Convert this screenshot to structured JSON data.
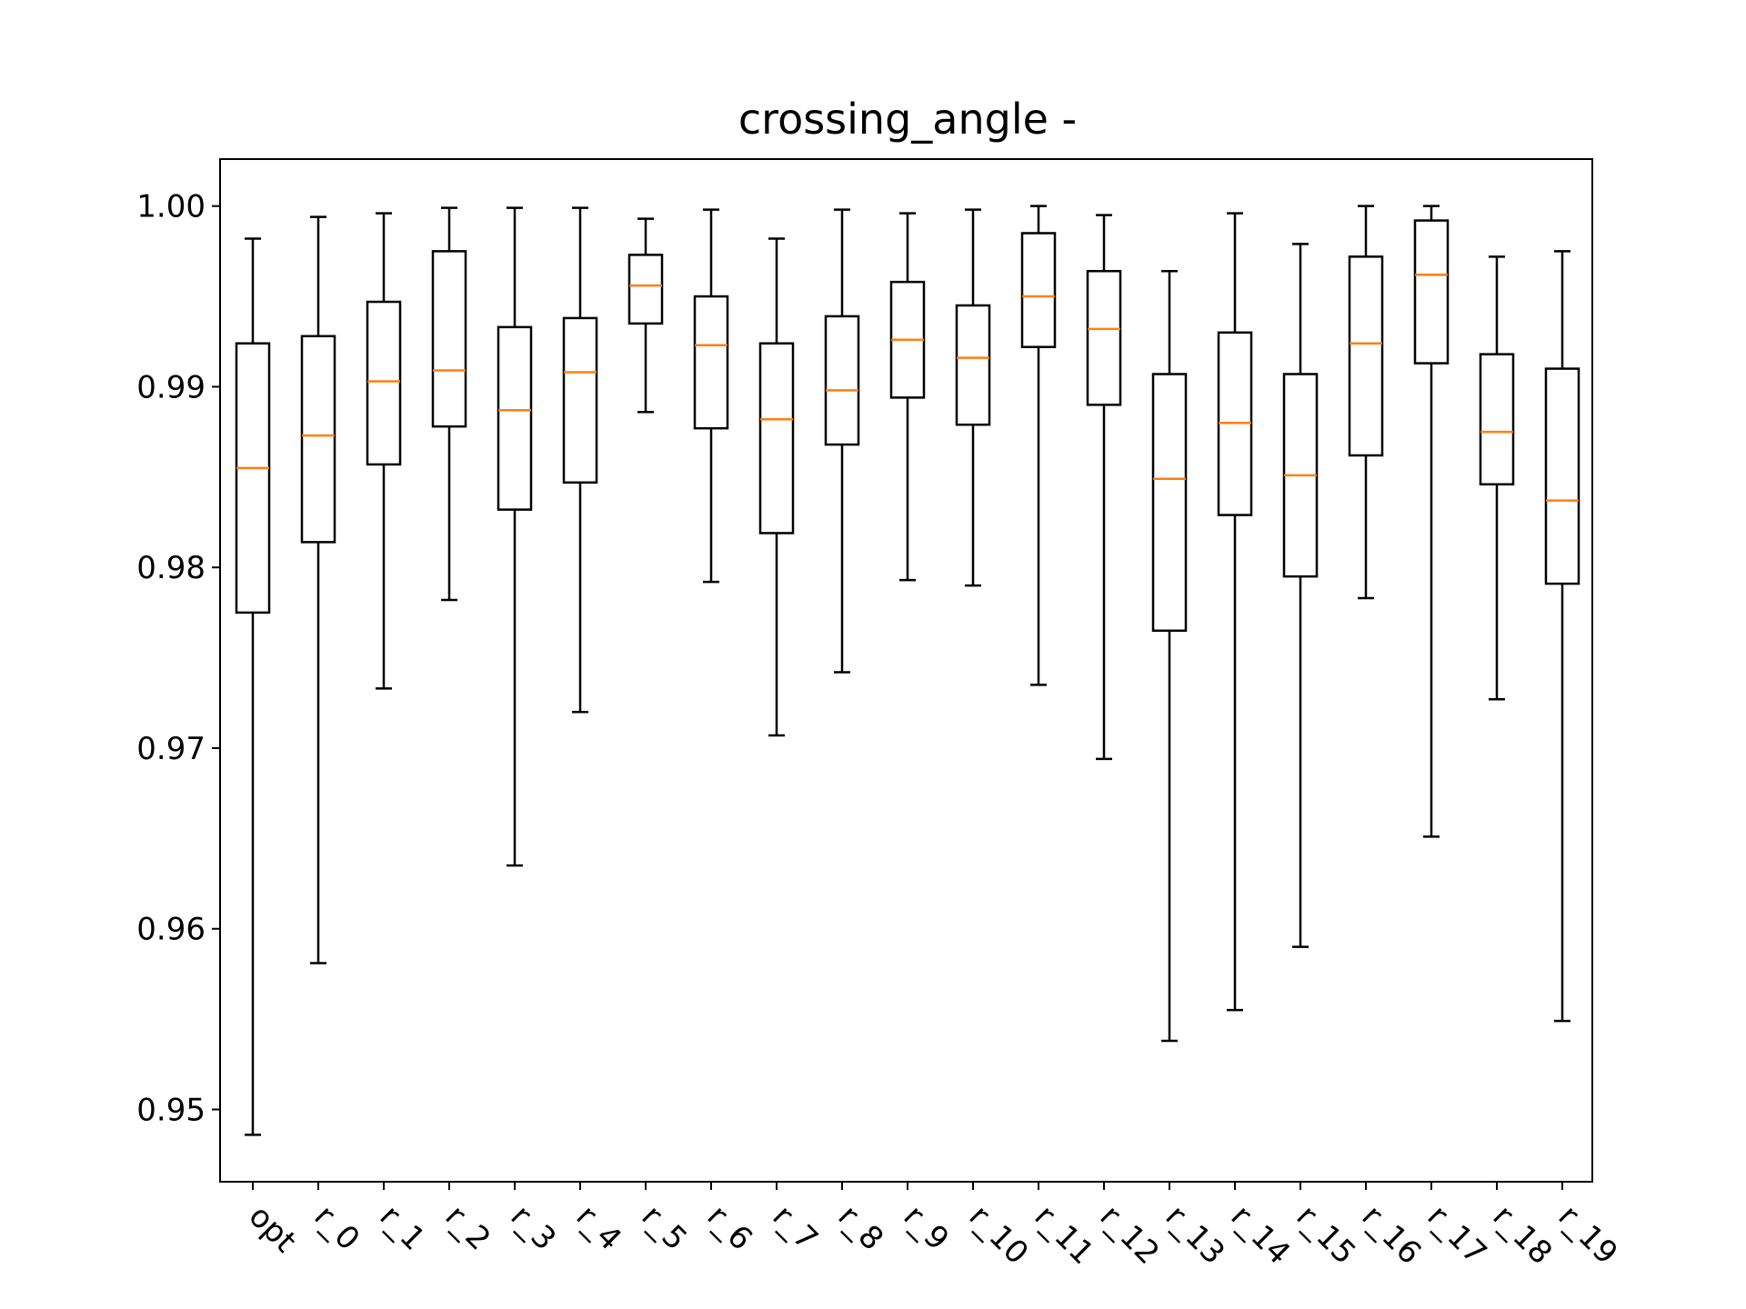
{
  "chart_data": {
    "type": "box",
    "title": "crossing_angle -",
    "xlabel": "",
    "ylabel": "",
    "ylim": [
      0.946,
      1.0026
    ],
    "yticks": [
      0.95,
      0.96,
      0.97,
      0.98,
      0.99,
      1.0
    ],
    "ytick_labels": [
      "0.95",
      "0.96",
      "0.97",
      "0.98",
      "0.99",
      "1.00"
    ],
    "categories": [
      "opt",
      "r_0",
      "r_1",
      "r_2",
      "r_3",
      "r_4",
      "r_5",
      "r_6",
      "r_7",
      "r_8",
      "r_9",
      "r_10",
      "r_11",
      "r_12",
      "r_13",
      "r_14",
      "r_15",
      "r_16",
      "r_17",
      "r_18",
      "r_19"
    ],
    "boxes": [
      {
        "whislo": 0.9486,
        "q1": 0.9775,
        "med": 0.9855,
        "q3": 0.9924,
        "whishi": 0.9982
      },
      {
        "whislo": 0.9581,
        "q1": 0.9814,
        "med": 0.9873,
        "q3": 0.9928,
        "whishi": 0.9994
      },
      {
        "whislo": 0.9733,
        "q1": 0.9857,
        "med": 0.9903,
        "q3": 0.9947,
        "whishi": 0.9996
      },
      {
        "whislo": 0.9782,
        "q1": 0.9878,
        "med": 0.9909,
        "q3": 0.9975,
        "whishi": 0.9999
      },
      {
        "whislo": 0.9635,
        "q1": 0.9832,
        "med": 0.9887,
        "q3": 0.9933,
        "whishi": 0.9999
      },
      {
        "whislo": 0.972,
        "q1": 0.9847,
        "med": 0.9908,
        "q3": 0.9938,
        "whishi": 0.9999
      },
      {
        "whislo": 0.9886,
        "q1": 0.9935,
        "med": 0.9956,
        "q3": 0.9973,
        "whishi": 0.9993
      },
      {
        "whislo": 0.9792,
        "q1": 0.9877,
        "med": 0.9923,
        "q3": 0.995,
        "whishi": 0.9998
      },
      {
        "whislo": 0.9707,
        "q1": 0.9819,
        "med": 0.9882,
        "q3": 0.9924,
        "whishi": 0.9982
      },
      {
        "whislo": 0.9742,
        "q1": 0.9868,
        "med": 0.9898,
        "q3": 0.9939,
        "whishi": 0.9998
      },
      {
        "whislo": 0.9793,
        "q1": 0.9894,
        "med": 0.9926,
        "q3": 0.9958,
        "whishi": 0.9996
      },
      {
        "whislo": 0.979,
        "q1": 0.9879,
        "med": 0.9916,
        "q3": 0.9945,
        "whishi": 0.9998
      },
      {
        "whislo": 0.9735,
        "q1": 0.9922,
        "med": 0.995,
        "q3": 0.9985,
        "whishi": 1.0
      },
      {
        "whislo": 0.9694,
        "q1": 0.989,
        "med": 0.9932,
        "q3": 0.9964,
        "whishi": 0.9995
      },
      {
        "whislo": 0.9538,
        "q1": 0.9765,
        "med": 0.9849,
        "q3": 0.9907,
        "whishi": 0.9964
      },
      {
        "whislo": 0.9555,
        "q1": 0.9829,
        "med": 0.988,
        "q3": 0.993,
        "whishi": 0.9996
      },
      {
        "whislo": 0.959,
        "q1": 0.9795,
        "med": 0.9851,
        "q3": 0.9907,
        "whishi": 0.9979
      },
      {
        "whislo": 0.9783,
        "q1": 0.9862,
        "med": 0.9924,
        "q3": 0.9972,
        "whishi": 1.0
      },
      {
        "whislo": 0.9651,
        "q1": 0.9913,
        "med": 0.9962,
        "q3": 0.9992,
        "whishi": 1.0
      },
      {
        "whislo": 0.9727,
        "q1": 0.9846,
        "med": 0.9875,
        "q3": 0.9918,
        "whishi": 0.9972
      },
      {
        "whislo": 0.9549,
        "q1": 0.9791,
        "med": 0.9837,
        "q3": 0.991,
        "whishi": 0.9975
      }
    ],
    "colors": {
      "box": "#000000",
      "median": "#ff7f0e",
      "axes": "#000000",
      "background": "#ffffff"
    },
    "grid": false,
    "legend": "none"
  }
}
